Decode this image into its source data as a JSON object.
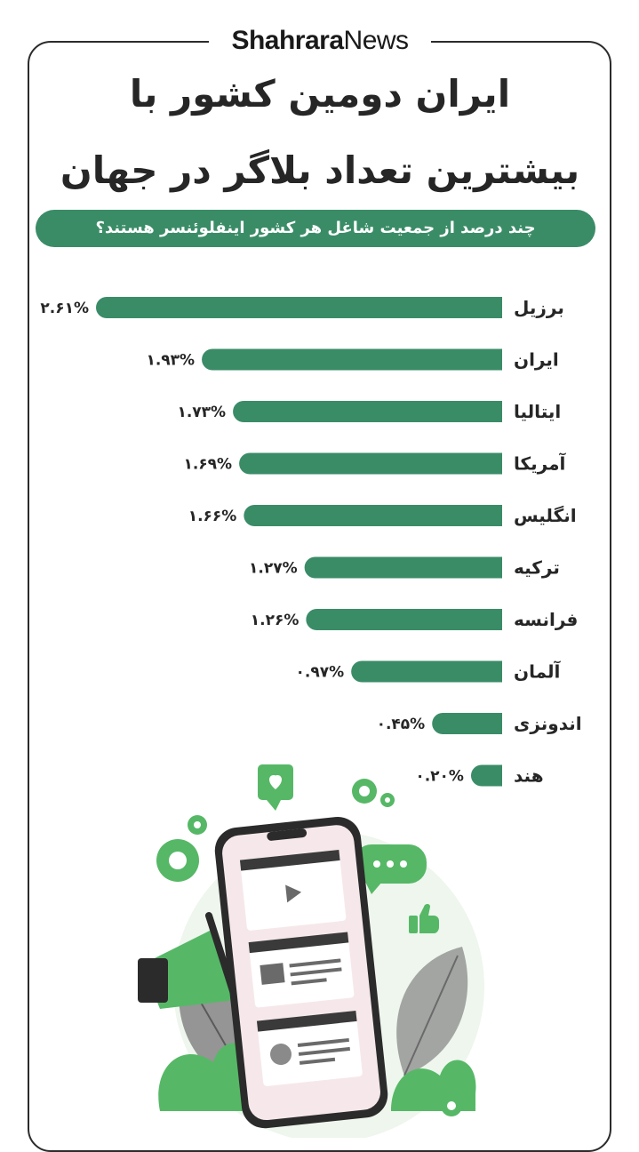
{
  "brand": {
    "bold": "Shahrara",
    "regular": "News"
  },
  "title_line1": "ایران دومین کشور با",
  "title_line2": "بیشترین تعداد بلاگر در جهان",
  "subtitle": "چند درصد از جمعیت شاغل هر کشور اینفلوئنسر هستند؟",
  "colors": {
    "bar": "#3a8c67",
    "text": "#262626"
  },
  "chart_data": {
    "type": "bar",
    "orientation": "horizontal",
    "title": "ایران دومین کشور با بیشترین تعداد بلاگر در جهان",
    "subtitle": "چند درصد از جمعیت شاغل هر کشور اینفلوئنسر هستند؟",
    "categories": [
      "برزیل",
      "ایران",
      "ایتالیا",
      "آمریکا",
      "انگلیس",
      "ترکیه",
      "فرانسه",
      "آلمان",
      "اندونزی",
      "هند"
    ],
    "values": [
      2.61,
      1.93,
      1.73,
      1.69,
      1.66,
      1.27,
      1.26,
      0.97,
      0.45,
      0.2
    ],
    "value_labels": [
      "۲.۶۱%",
      "۱.۹۳%",
      "۱.۷۳%",
      "۱.۶۹%",
      "۱.۶۶%",
      "۱.۲۷%",
      "۱.۲۶%",
      "۰.۹۷%",
      "۰.۴۵%",
      "۰.۲۰%"
    ],
    "unit": "%",
    "xlim": [
      0,
      2.61
    ],
    "grid": false,
    "legend": "none"
  }
}
